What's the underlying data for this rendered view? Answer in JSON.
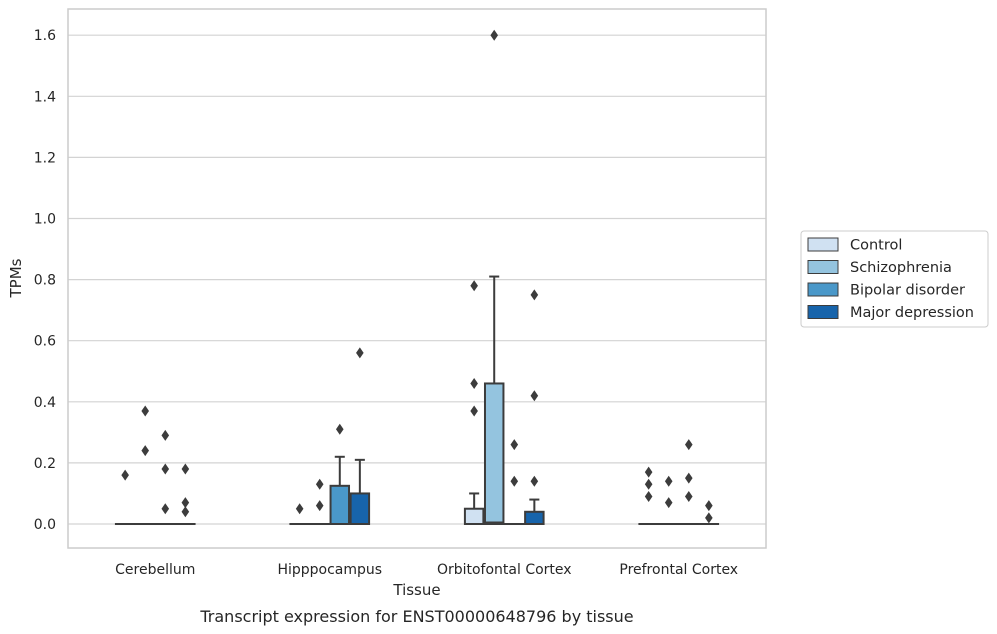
{
  "chart_data": {
    "type": "box",
    "xlabel": "Tissue",
    "ylabel": "TPMs",
    "caption": "Transcript expression for ENST00000648796 by tissue",
    "ylim": [
      -0.08,
      1.68
    ],
    "yticks": [
      "0.0",
      "0.2",
      "0.4",
      "0.6",
      "0.8",
      "1.0",
      "1.2",
      "1.4",
      "1.6"
    ],
    "categories": [
      "Cerebellum",
      "Hipppocampus",
      "Orbitofontal Cortex",
      "Prefrontal Cortex"
    ],
    "grid": "horizontal",
    "legend_position": "right",
    "series": [
      {
        "name": "Control",
        "color": "#d0e1f2",
        "boxes": [
          {
            "q1": 0,
            "median": 0,
            "q3": 0,
            "whisker_low": 0,
            "whisker_high": 0,
            "outliers": [
              0.16
            ]
          },
          {
            "q1": 0,
            "median": 0,
            "q3": 0,
            "whisker_low": 0,
            "whisker_high": 0,
            "outliers": [
              0.05
            ]
          },
          {
            "q1": 0,
            "median": 0,
            "q3": 0.05,
            "whisker_low": 0,
            "whisker_high": 0.1,
            "outliers": [
              0.78,
              0.46,
              0.37
            ]
          },
          {
            "q1": 0,
            "median": 0,
            "q3": 0,
            "whisker_low": 0,
            "whisker_high": 0,
            "outliers": [
              0.17,
              0.13,
              0.09
            ]
          }
        ]
      },
      {
        "name": "Schizophrenia",
        "color": "#94c4df",
        "boxes": [
          {
            "q1": 0,
            "median": 0,
            "q3": 0,
            "whisker_low": 0,
            "whisker_high": 0,
            "outliers": [
              0.37,
              0.24
            ]
          },
          {
            "q1": 0,
            "median": 0,
            "q3": 0,
            "whisker_low": 0,
            "whisker_high": 0,
            "outliers": [
              0.13,
              0.06
            ]
          },
          {
            "q1": 0,
            "median": 0.005,
            "q3": 0.46,
            "whisker_low": 0,
            "whisker_high": 0.81,
            "outliers": [
              1.6
            ]
          },
          {
            "q1": 0,
            "median": 0,
            "q3": 0,
            "whisker_low": 0,
            "whisker_high": 0,
            "outliers": [
              0.14,
              0.07
            ]
          }
        ]
      },
      {
        "name": "Bipolar disorder",
        "color": "#4a98c9",
        "boxes": [
          {
            "q1": 0,
            "median": 0,
            "q3": 0,
            "whisker_low": 0,
            "whisker_high": 0,
            "outliers": [
              0.29,
              0.18,
              0.05
            ]
          },
          {
            "q1": 0,
            "median": 0,
            "q3": 0.125,
            "whisker_low": 0,
            "whisker_high": 0.22,
            "outliers": [
              0.31
            ]
          },
          {
            "q1": 0,
            "median": 0,
            "q3": 0,
            "whisker_low": 0,
            "whisker_high": 0,
            "outliers": [
              0.26,
              0.14
            ]
          },
          {
            "q1": 0,
            "median": 0,
            "q3": 0,
            "whisker_low": 0,
            "whisker_high": 0,
            "outliers": [
              0.26,
              0.15,
              0.09
            ]
          }
        ]
      },
      {
        "name": "Major depression",
        "color": "#1764ab",
        "boxes": [
          {
            "q1": 0,
            "median": 0,
            "q3": 0,
            "whisker_low": 0,
            "whisker_high": 0,
            "outliers": [
              0.18,
              0.07,
              0.04
            ]
          },
          {
            "q1": 0,
            "median": 0,
            "q3": 0.1,
            "whisker_low": 0,
            "whisker_high": 0.21,
            "outliers": [
              0.56
            ]
          },
          {
            "q1": 0,
            "median": 0,
            "q3": 0.04,
            "whisker_low": 0,
            "whisker_high": 0.08,
            "outliers": [
              0.75,
              0.42,
              0.14
            ]
          },
          {
            "q1": 0,
            "median": 0,
            "q3": 0,
            "whisker_low": 0,
            "whisker_high": 0,
            "outliers": [
              0.06,
              0.02
            ]
          }
        ]
      }
    ]
  }
}
